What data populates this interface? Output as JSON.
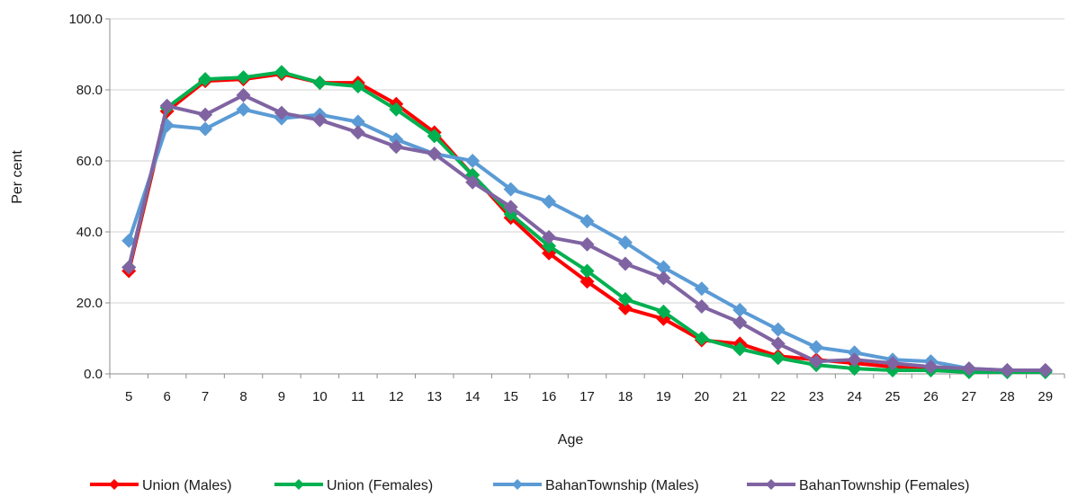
{
  "chart_data": {
    "type": "line",
    "title": "",
    "xlabel": "Age",
    "ylabel": "Per cent",
    "ylim": [
      0,
      100
    ],
    "yticks": [
      "0.0",
      "20.0",
      "40.0",
      "60.0",
      "80.0",
      "100.0"
    ],
    "grid": "horizontal",
    "legend_position": "bottom",
    "x": [
      5,
      6,
      7,
      8,
      9,
      10,
      11,
      12,
      13,
      14,
      15,
      16,
      17,
      18,
      19,
      20,
      21,
      22,
      23,
      24,
      25,
      26,
      27,
      28,
      29
    ],
    "series": [
      {
        "name": "Union (Males)",
        "color": "#ff0000",
        "marker": "diamond",
        "values": [
          29,
          74,
          82.5,
          83,
          84.5,
          82,
          82,
          76,
          68,
          56,
          44,
          34,
          26,
          18.5,
          15.5,
          9.5,
          8.5,
          5,
          4,
          3,
          2,
          1.5,
          1,
          1,
          1
        ]
      },
      {
        "name": "Union (Females)",
        "color": "#00b050",
        "marker": "diamond",
        "values": [
          30,
          75,
          83,
          83.5,
          85,
          82,
          81,
          74.5,
          67,
          56,
          45,
          36,
          29,
          21,
          17.5,
          10,
          7,
          4.5,
          2.5,
          1.5,
          1,
          1,
          0.5,
          0.5,
          0.5
        ]
      },
      {
        "name": "BahanTownship (Males)",
        "color": "#5b9bd5",
        "marker": "diamond",
        "values": [
          37.5,
          70,
          69,
          74.5,
          72,
          73,
          71,
          66,
          62,
          60,
          52,
          48.5,
          43,
          37,
          30,
          24,
          18,
          12.5,
          7.5,
          6,
          4,
          3.5,
          1.5,
          1,
          1
        ]
      },
      {
        "name": "BahanTownship (Females)",
        "color": "#8064a2",
        "marker": "diamond",
        "values": [
          30,
          75.5,
          73,
          78.5,
          73.5,
          71.5,
          68,
          64,
          62,
          54,
          47,
          38.5,
          36.5,
          31,
          27,
          19,
          14.5,
          8.5,
          3.5,
          4,
          3,
          2,
          1.5,
          1,
          1
        ]
      }
    ]
  }
}
